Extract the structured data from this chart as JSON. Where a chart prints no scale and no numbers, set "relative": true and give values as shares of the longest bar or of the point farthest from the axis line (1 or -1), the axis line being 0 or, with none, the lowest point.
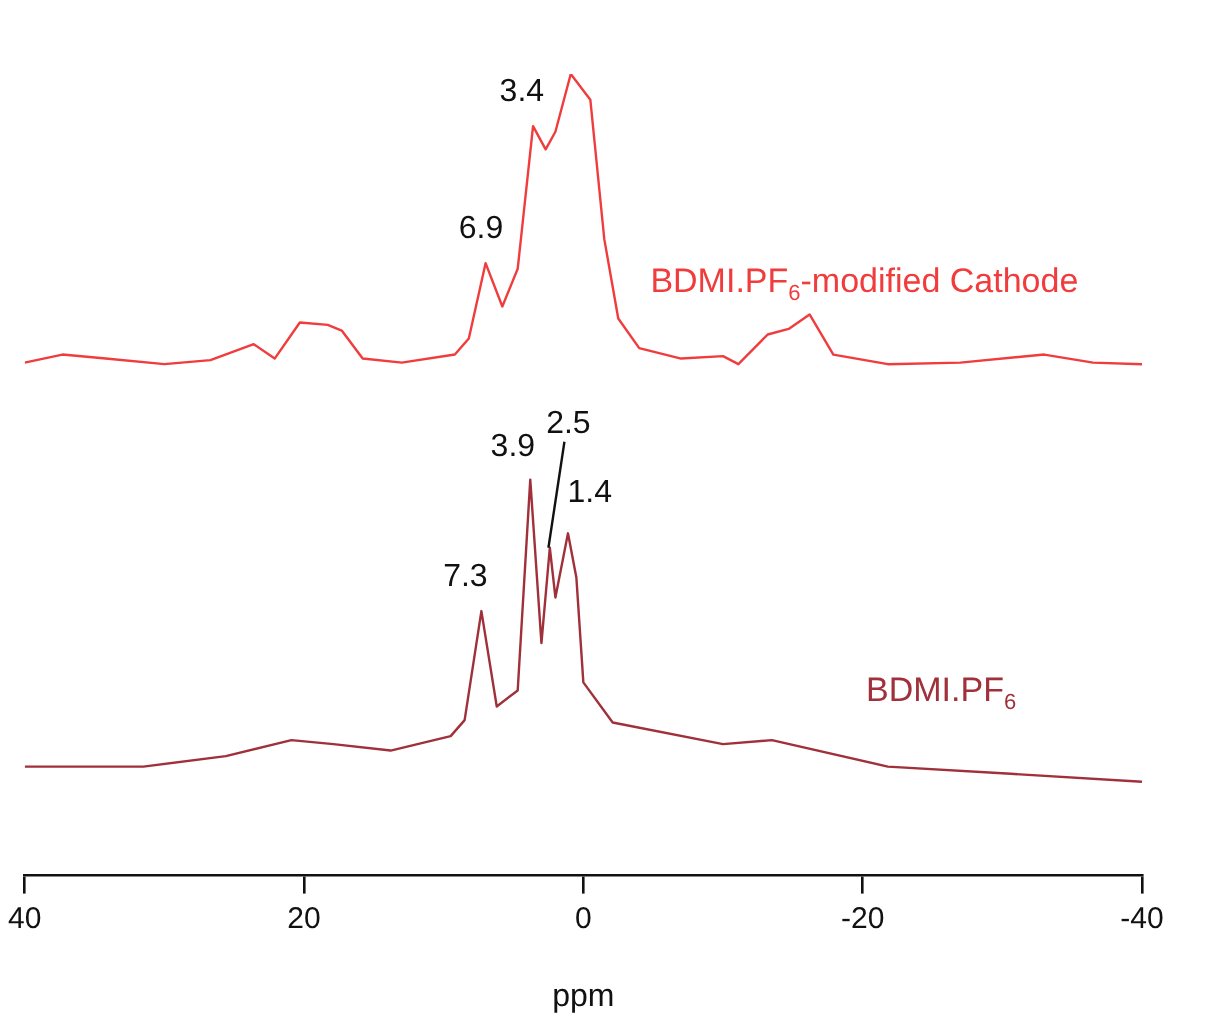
{
  "chart_data": {
    "type": "line",
    "relative": true,
    "xlabel": "ppm",
    "xlim": [
      40,
      -40
    ],
    "xticks": [
      40,
      20,
      0,
      -20,
      -40
    ],
    "grid": false,
    "legend": false,
    "marker": "none",
    "line_style": "solid",
    "tick_labels": "x",
    "series": [
      {
        "name": "BDMI.PF$_{6}$-modified Cathode",
        "color": "#f03c3c",
        "x": [
          40,
          37.3,
          34.2,
          30,
          26.7,
          23.6,
          22.1,
          20.3,
          18.3,
          17.3,
          15.8,
          13,
          9.2,
          8.2,
          7.0,
          5.8,
          4.7,
          3.6,
          2.7,
          2.0,
          0.9,
          -0.5,
          -1.5,
          -2.5,
          -4,
          -7,
          -10,
          -11.1,
          -13.2,
          -14.7,
          -16.2,
          -17.9,
          -21.8,
          -27,
          -33,
          -36.5,
          -40
        ],
        "values": [
          0.64,
          0.65,
          0.645,
          0.638,
          0.643,
          0.663,
          0.645,
          0.69,
          0.687,
          0.68,
          0.645,
          0.64,
          0.65,
          0.67,
          0.764,
          0.71,
          0.757,
          0.935,
          0.906,
          0.928,
          1,
          0.968,
          0.794,
          0.695,
          0.658,
          0.645,
          0.648,
          0.638,
          0.675,
          0.682,
          0.7,
          0.65,
          0.638,
          0.64,
          0.65,
          0.64,
          0.638
        ]
      },
      {
        "name": "BDMI.PF$_{6}$",
        "color": "#a0303a",
        "x": [
          40,
          31.5,
          25.6,
          20.9,
          17.9,
          13.8,
          9.5,
          8.5,
          7.3,
          6.2,
          4.7,
          3.8,
          3.0,
          2.4,
          2.0,
          1.1,
          0.5,
          0,
          -2.1,
          -10,
          -13.5,
          -21.8,
          -30.6,
          -40
        ],
        "values": [
          0.136,
          0.136,
          0.149,
          0.169,
          0.164,
          0.156,
          0.174,
          0.194,
          0.33,
          0.211,
          0.231,
          0.494,
          0.29,
          0.409,
          0.347,
          0.427,
          0.372,
          0.241,
          0.191,
          0.164,
          0.169,
          0.136,
          0.127,
          0.117
        ]
      }
    ],
    "annotations": [
      {
        "text": "6.9",
        "x": 6.9,
        "y": 0.764
      },
      {
        "text": "3.4",
        "x": 3.4,
        "y": 0.935
      },
      {
        "text": "7.3",
        "x": 7.3,
        "y": 0.33
      },
      {
        "text": "3.9",
        "x": 3.9,
        "y": 0.494
      },
      {
        "text": "2.5",
        "x": 2.5,
        "y": 0.409
      },
      {
        "text": "1.4",
        "x": 1.4,
        "y": 0.427
      }
    ]
  }
}
